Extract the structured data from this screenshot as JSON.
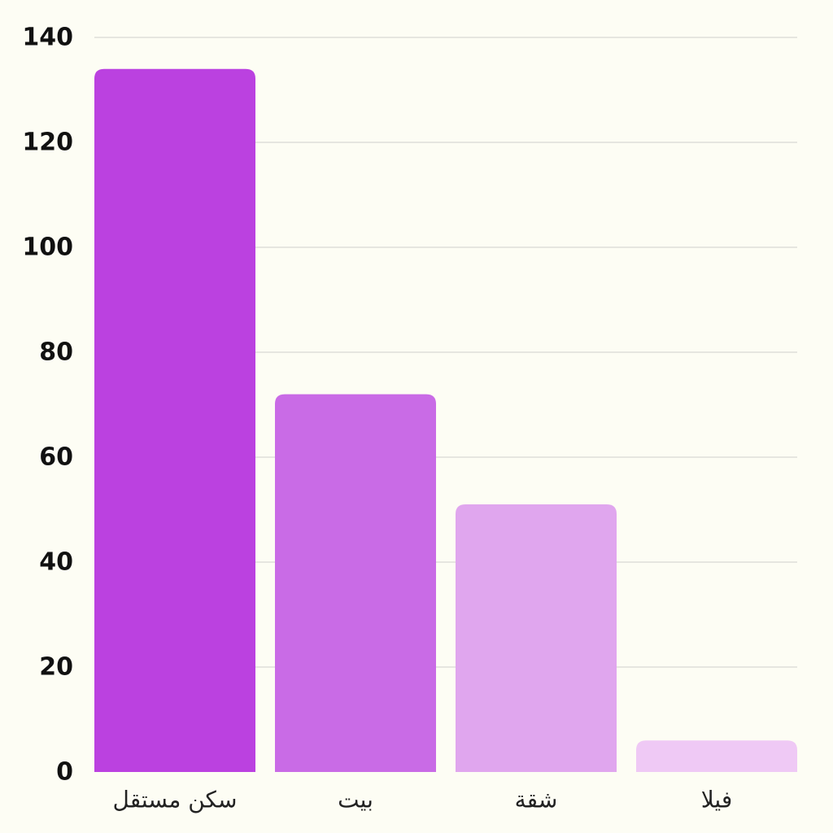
{
  "chart_data": {
    "type": "bar",
    "title": "",
    "xlabel": "",
    "ylabel": "",
    "categories": [
      "سكن مستقل",
      "بيت",
      "شقة",
      "فيلا"
    ],
    "values": [
      134,
      72,
      51,
      6
    ],
    "colors": [
      "#bb41e0",
      "#c96be6",
      "#e0a6ee",
      "#efc9f5"
    ],
    "ylim": [
      0,
      140
    ],
    "yticks": [
      0,
      20,
      40,
      60,
      80,
      100,
      120,
      140
    ],
    "grid": true,
    "legend": "none"
  },
  "colors": {
    "background": "#fdfdf4",
    "grid": "#d9d9d4"
  }
}
